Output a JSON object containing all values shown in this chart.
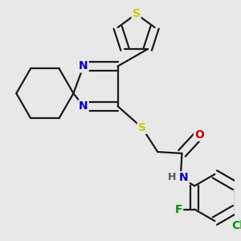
{
  "background_color": "#e8e8e8",
  "bond_color": "#1a1a1a",
  "bond_width": 1.6,
  "atom_colors": {
    "S_thiophene": "#cccc00",
    "S_thioether": "#cccc00",
    "N": "#0000cc",
    "O": "#cc0000",
    "F": "#009900",
    "Cl": "#009900",
    "H": "#555555",
    "C": "#1a1a1a"
  },
  "font_size_atom": 10,
  "figsize": [
    3.0,
    3.0
  ],
  "dpi": 100
}
